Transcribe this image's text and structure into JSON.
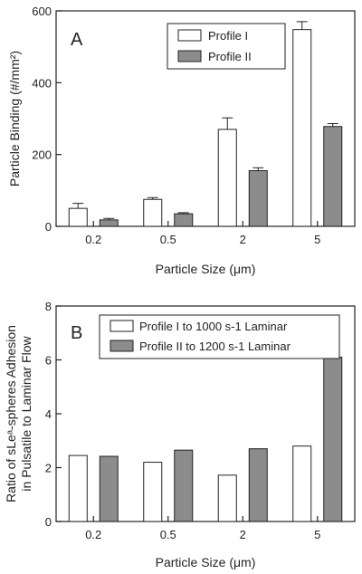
{
  "chart_data": [
    {
      "type": "bar",
      "panel_label": "A",
      "categories": [
        "0.2",
        "0.5",
        "2",
        "5"
      ],
      "series": [
        {
          "name": "Profile I",
          "values": [
            50,
            75,
            270,
            548
          ],
          "errors": [
            14,
            5,
            32,
            22
          ],
          "color": "#ffffff"
        },
        {
          "name": "Profile II",
          "values": [
            18,
            35,
            155,
            278
          ],
          "errors": [
            4,
            3,
            8,
            8
          ],
          "color": "#8c8c8c"
        }
      ],
      "xlabel": "Particle Size (μm)",
      "ylabel": "Particle Binding (#/mm²)",
      "ylim": [
        0,
        600
      ],
      "yticks": [
        0,
        200,
        400,
        600
      ],
      "legend_position": "top-right",
      "grid": false
    },
    {
      "type": "bar",
      "panel_label": "B",
      "categories": [
        "0.2",
        "0.5",
        "2",
        "5"
      ],
      "series": [
        {
          "name": "Profile I  to 1000 s-1 Laminar",
          "values": [
            2.45,
            2.2,
            1.72,
            2.8
          ],
          "color": "#ffffff"
        },
        {
          "name": "Profile II to 1200 s-1 Laminar",
          "values": [
            2.42,
            2.65,
            2.7,
            6.1
          ],
          "color": "#8c8c8c"
        }
      ],
      "xlabel": "Particle Size (μm)",
      "ylabel_line1": "Ratio of sLeᵃ-spheres Adhesion",
      "ylabel_line2": "in Pulsatile to  Laminar Flow",
      "ylim": [
        0,
        8
      ],
      "yticks": [
        0,
        2,
        4,
        6,
        8
      ],
      "legend_position": "top",
      "grid": false
    }
  ]
}
